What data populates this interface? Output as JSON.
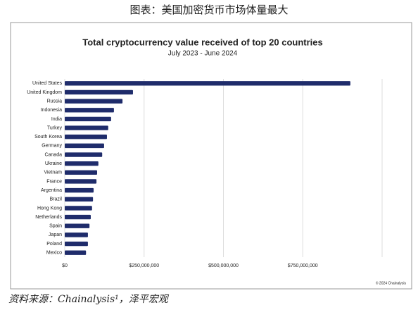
{
  "caption": "图表：美国加密货币市场体量最大",
  "source": "资料来源：Chainalysis¹，泽平宏观",
  "chart_data": {
    "type": "bar",
    "orientation": "horizontal",
    "title": "Total cryptocurrency value received of top 20 countries",
    "subtitle": "July 2023 - June 2024",
    "credit": "© 2024 Chainalysis",
    "categories": [
      "United States",
      "United Kingdom",
      "Russia",
      "Indonesia",
      "India",
      "Turkey",
      "South Korea",
      "Germany",
      "Canada",
      "Ukraine",
      "Vietnam",
      "France",
      "Argentina",
      "Brazil",
      "Hong Kong",
      "Netherlands",
      "Spain",
      "Japan",
      "Poland",
      "Mexico"
    ],
    "values": [
      900000000,
      215000000,
      182000000,
      155000000,
      146000000,
      137000000,
      133000000,
      124000000,
      118000000,
      106000000,
      102000000,
      100000000,
      91000000,
      89000000,
      86000000,
      82000000,
      78000000,
      73000000,
      73000000,
      67000000
    ],
    "color": "#1f2c6b",
    "xlim": [
      0,
      1000000000
    ],
    "xticks": [
      {
        "value": 0,
        "label": "$0"
      },
      {
        "value": 250000000,
        "label": "$250,000,000"
      },
      {
        "value": 500000000,
        "label": "$500,000,000"
      },
      {
        "value": 750000000,
        "label": "$750,000,000"
      }
    ],
    "grid": true
  }
}
